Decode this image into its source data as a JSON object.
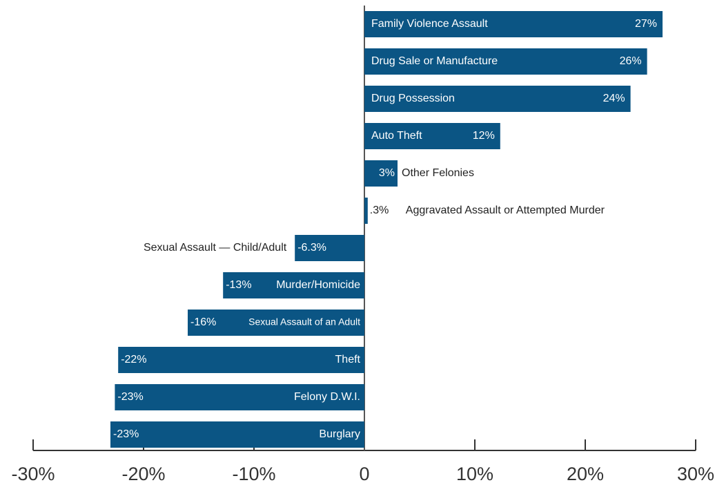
{
  "chart_data": {
    "type": "bar",
    "orientation": "horizontal",
    "categories": [
      "Family Violence Assault",
      "Drug Sale or Manufacture",
      "Drug Possession",
      "Auto Theft",
      "Other Felonies",
      "Aggravated Assault or Attempted Murder",
      "Sexual Assault — Child/Adult",
      "Murder/Homicide",
      "Sexual Assault of an Adult",
      "Theft",
      "Felony D.W.I.",
      "Burglary"
    ],
    "values": [
      27,
      25.6,
      24.1,
      12.3,
      3,
      0.3,
      -6.3,
      -12.8,
      -16,
      -22.3,
      -22.6,
      -23
    ],
    "value_labels": [
      "27%",
      "26%",
      "24%",
      "12%",
      "3%",
      ".3%",
      "-6.3%",
      "-13%",
      "-16%",
      "-22%",
      "-23%",
      "-23%"
    ],
    "color": "#0b5584",
    "xlim": [
      -30,
      30
    ],
    "xticks": [
      {
        "value": -30,
        "label": "-30%"
      },
      {
        "value": -20,
        "label": "-20%"
      },
      {
        "value": -10,
        "label": "-10%"
      },
      0,
      {
        "value": 10,
        "label": "10%"
      },
      {
        "value": 20,
        "label": "20%"
      },
      {
        "value": 30,
        "label": "30%"
      }
    ]
  }
}
